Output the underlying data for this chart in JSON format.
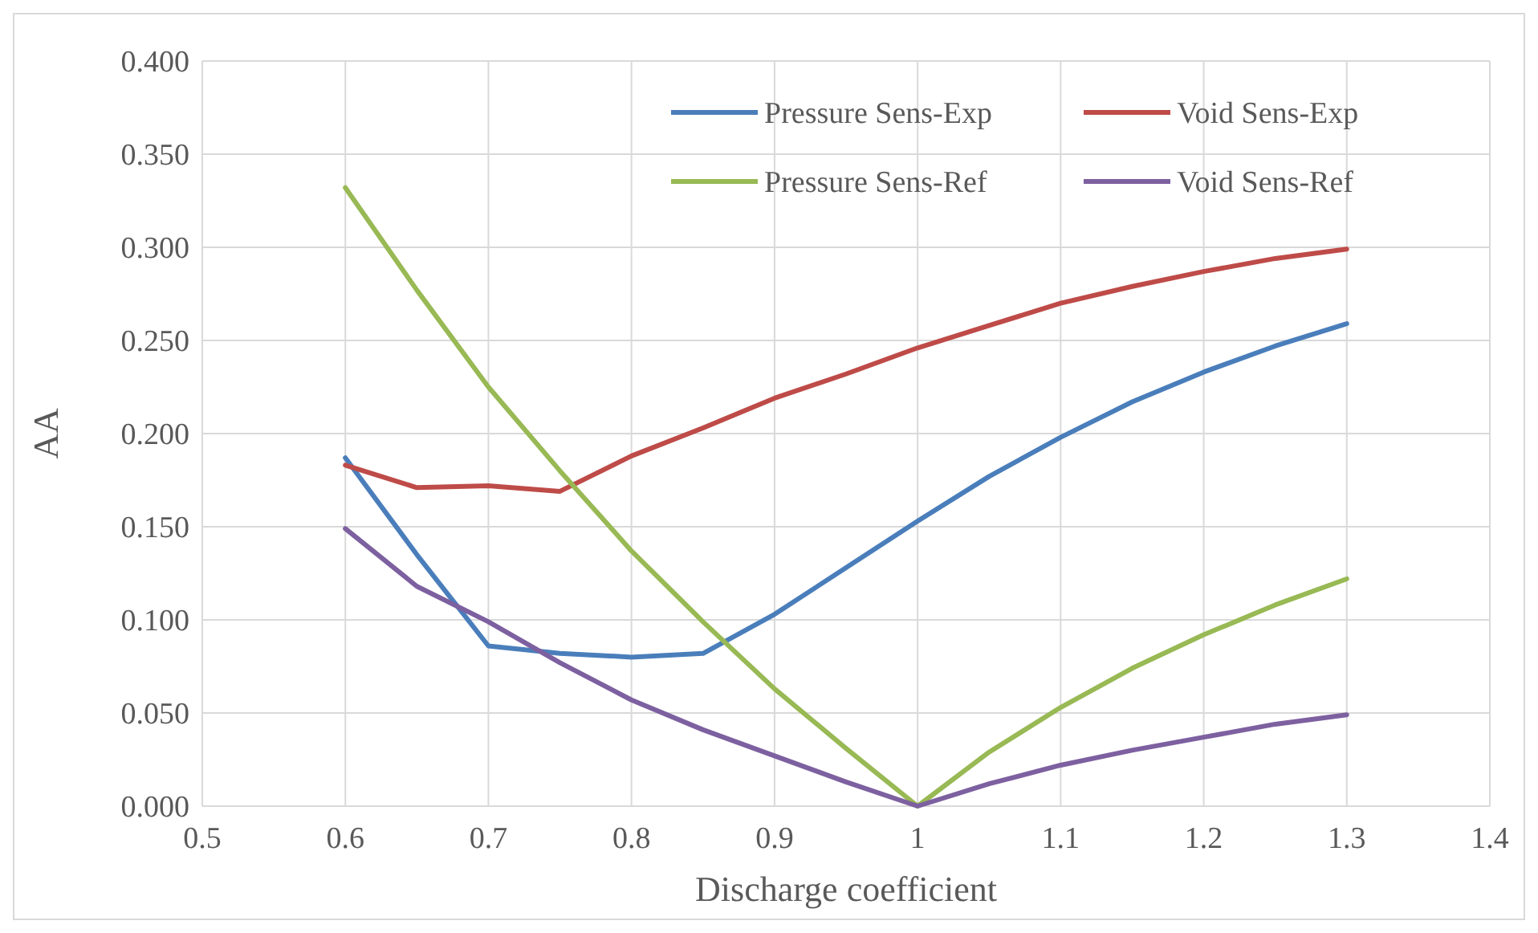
{
  "chart_data": {
    "type": "line",
    "xlabel": "Discharge coefficient",
    "ylabel": "AA",
    "x": [
      0.6,
      0.65,
      0.7,
      0.75,
      0.8,
      0.85,
      0.9,
      0.95,
      1.0,
      1.05,
      1.1,
      1.15,
      1.2,
      1.25,
      1.3
    ],
    "series": [
      {
        "name": "Pressure Sens-Exp",
        "color": "#4a7ebb",
        "values": [
          0.187,
          0.135,
          0.086,
          0.082,
          0.08,
          0.082,
          0.103,
          0.128,
          0.153,
          0.177,
          0.198,
          0.217,
          0.233,
          0.247,
          0.259
        ]
      },
      {
        "name": "Void Sens-Exp",
        "color": "#be4b48",
        "values": [
          0.183,
          0.171,
          0.172,
          0.169,
          0.188,
          0.203,
          0.219,
          0.232,
          0.246,
          0.258,
          0.27,
          0.279,
          0.287,
          0.294,
          0.299
        ]
      },
      {
        "name": "Pressure Sens-Ref",
        "color": "#98b954",
        "values": [
          0.332,
          0.277,
          0.225,
          0.18,
          0.137,
          0.099,
          0.063,
          0.031,
          0.0,
          0.029,
          0.053,
          0.074,
          0.092,
          0.108,
          0.122
        ]
      },
      {
        "name": "Void Sens-Ref",
        "color": "#7d60a0",
        "values": [
          0.149,
          0.118,
          0.099,
          0.077,
          0.057,
          0.041,
          0.027,
          0.013,
          0.0,
          0.012,
          0.022,
          0.03,
          0.037,
          0.044,
          0.049
        ]
      }
    ],
    "xlim": [
      0.5,
      1.4
    ],
    "xticks": [
      0.5,
      0.6,
      0.7,
      0.8,
      0.9,
      1,
      1.1,
      1.2,
      1.3,
      1.4
    ],
    "ylim": [
      0,
      0.4
    ],
    "yticks": [
      {
        "value": 0,
        "label": "0.000"
      },
      {
        "value": 0.05,
        "label": "0.050"
      },
      {
        "value": 0.1,
        "label": "0.100"
      },
      {
        "value": 0.15,
        "label": "0.150"
      },
      {
        "value": 0.2,
        "label": "0.200"
      },
      {
        "value": 0.25,
        "label": "0.250"
      },
      {
        "value": 0.3,
        "label": "0.300"
      },
      {
        "value": 0.35,
        "label": "0.350"
      },
      {
        "value": 0.4,
        "label": "0.400"
      }
    ],
    "grid": true,
    "legend": "top right",
    "marker": "none",
    "line_style": "solid"
  }
}
